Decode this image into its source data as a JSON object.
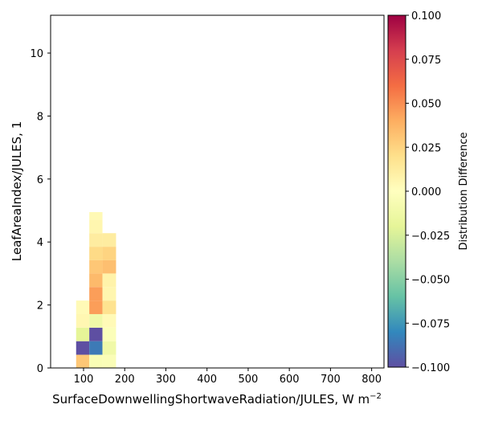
{
  "chart_data": {
    "type": "heatmap",
    "title": "",
    "xlabel": "SurfaceDownwellingShortwaveRadiation/JULES,  W m",
    "xlabel_superscript": "−2",
    "ylabel": "LeafAreaIndex/JULES,  1",
    "xlim": [
      20,
      830
    ],
    "ylim": [
      0,
      11.2
    ],
    "xticks": [
      100,
      200,
      300,
      400,
      500,
      600,
      700,
      800
    ],
    "yticks": [
      0,
      2,
      4,
      6,
      8,
      10
    ],
    "colorbar": {
      "label": "Distribution Difference",
      "range": [
        -0.1,
        0.1
      ],
      "colormap": "Spectral_r",
      "ticks": [
        0.1,
        0.075,
        0.05,
        0.025,
        0.0,
        -0.025,
        -0.05,
        -0.075,
        -0.1
      ],
      "tick_labels": [
        "0.100",
        "0.075",
        "0.050",
        "0.025",
        "0.000",
        "−0.025",
        "−0.050",
        "−0.075",
        "−0.100"
      ]
    },
    "cells": [
      {
        "x0": 82,
        "x1": 114,
        "y0": 0.0,
        "y1": 0.42,
        "value": 0.03
      },
      {
        "x0": 82,
        "x1": 114,
        "y0": 0.42,
        "y1": 0.85,
        "value": -0.1
      },
      {
        "x0": 82,
        "x1": 114,
        "y0": 0.85,
        "y1": 1.28,
        "value": -0.02
      },
      {
        "x0": 82,
        "x1": 114,
        "y0": 1.28,
        "y1": 1.71,
        "value": 0.005
      },
      {
        "x0": 82,
        "x1": 114,
        "y0": 1.71,
        "y1": 2.14,
        "value": 0.003
      },
      {
        "x0": 114,
        "x1": 146,
        "y0": 0.0,
        "y1": 0.42,
        "value": -0.005
      },
      {
        "x0": 114,
        "x1": 146,
        "y0": 0.42,
        "y1": 0.85,
        "value": -0.085
      },
      {
        "x0": 114,
        "x1": 146,
        "y0": 0.85,
        "y1": 1.28,
        "value": -0.1
      },
      {
        "x0": 114,
        "x1": 146,
        "y0": 1.28,
        "y1": 1.71,
        "value": -0.012
      },
      {
        "x0": 114,
        "x1": 146,
        "y0": 1.71,
        "y1": 2.14,
        "value": 0.045
      },
      {
        "x0": 114,
        "x1": 146,
        "y0": 2.14,
        "y1": 2.57,
        "value": 0.045
      },
      {
        "x0": 114,
        "x1": 146,
        "y0": 2.57,
        "y1": 3.0,
        "value": 0.035
      },
      {
        "x0": 114,
        "x1": 146,
        "y0": 3.0,
        "y1": 3.42,
        "value": 0.03
      },
      {
        "x0": 114,
        "x1": 146,
        "y0": 3.42,
        "y1": 3.85,
        "value": 0.022
      },
      {
        "x0": 114,
        "x1": 146,
        "y0": 3.85,
        "y1": 4.28,
        "value": 0.012
      },
      {
        "x0": 114,
        "x1": 146,
        "y0": 4.28,
        "y1": 4.71,
        "value": 0.006
      },
      {
        "x0": 114,
        "x1": 146,
        "y0": 4.71,
        "y1": 4.95,
        "value": 0.004
      },
      {
        "x0": 146,
        "x1": 179,
        "y0": 0.0,
        "y1": 0.42,
        "value": -0.004
      },
      {
        "x0": 146,
        "x1": 179,
        "y0": 0.42,
        "y1": 0.85,
        "value": -0.012
      },
      {
        "x0": 146,
        "x1": 179,
        "y0": 0.85,
        "y1": 1.28,
        "value": -0.003
      },
      {
        "x0": 146,
        "x1": 179,
        "y0": 1.28,
        "y1": 1.71,
        "value": 0.003
      },
      {
        "x0": 146,
        "x1": 179,
        "y0": 1.71,
        "y1": 2.14,
        "value": 0.018
      },
      {
        "x0": 146,
        "x1": 179,
        "y0": 2.14,
        "y1": 2.57,
        "value": 0.006
      },
      {
        "x0": 146,
        "x1": 179,
        "y0": 2.57,
        "y1": 3.0,
        "value": 0.008
      },
      {
        "x0": 146,
        "x1": 179,
        "y0": 3.0,
        "y1": 3.42,
        "value": 0.033
      },
      {
        "x0": 146,
        "x1": 179,
        "y0": 3.42,
        "y1": 3.85,
        "value": 0.025
      },
      {
        "x0": 146,
        "x1": 179,
        "y0": 3.85,
        "y1": 4.28,
        "value": 0.012
      }
    ]
  }
}
